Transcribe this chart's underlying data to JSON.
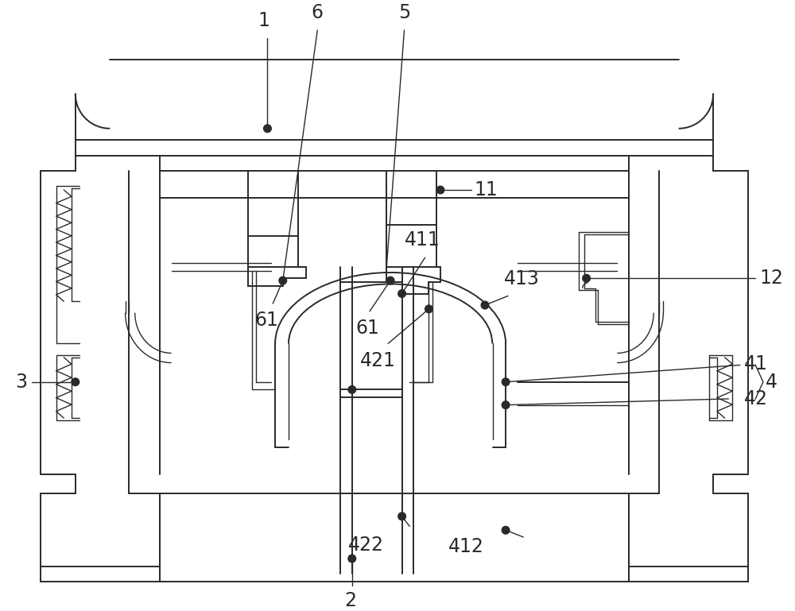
{
  "fig_width": 10.0,
  "fig_height": 7.69,
  "dpi": 100,
  "lc": "#2a2a2a",
  "lw": 1.4,
  "lw2": 1.0,
  "bg": "#ffffff",
  "fs": 17
}
